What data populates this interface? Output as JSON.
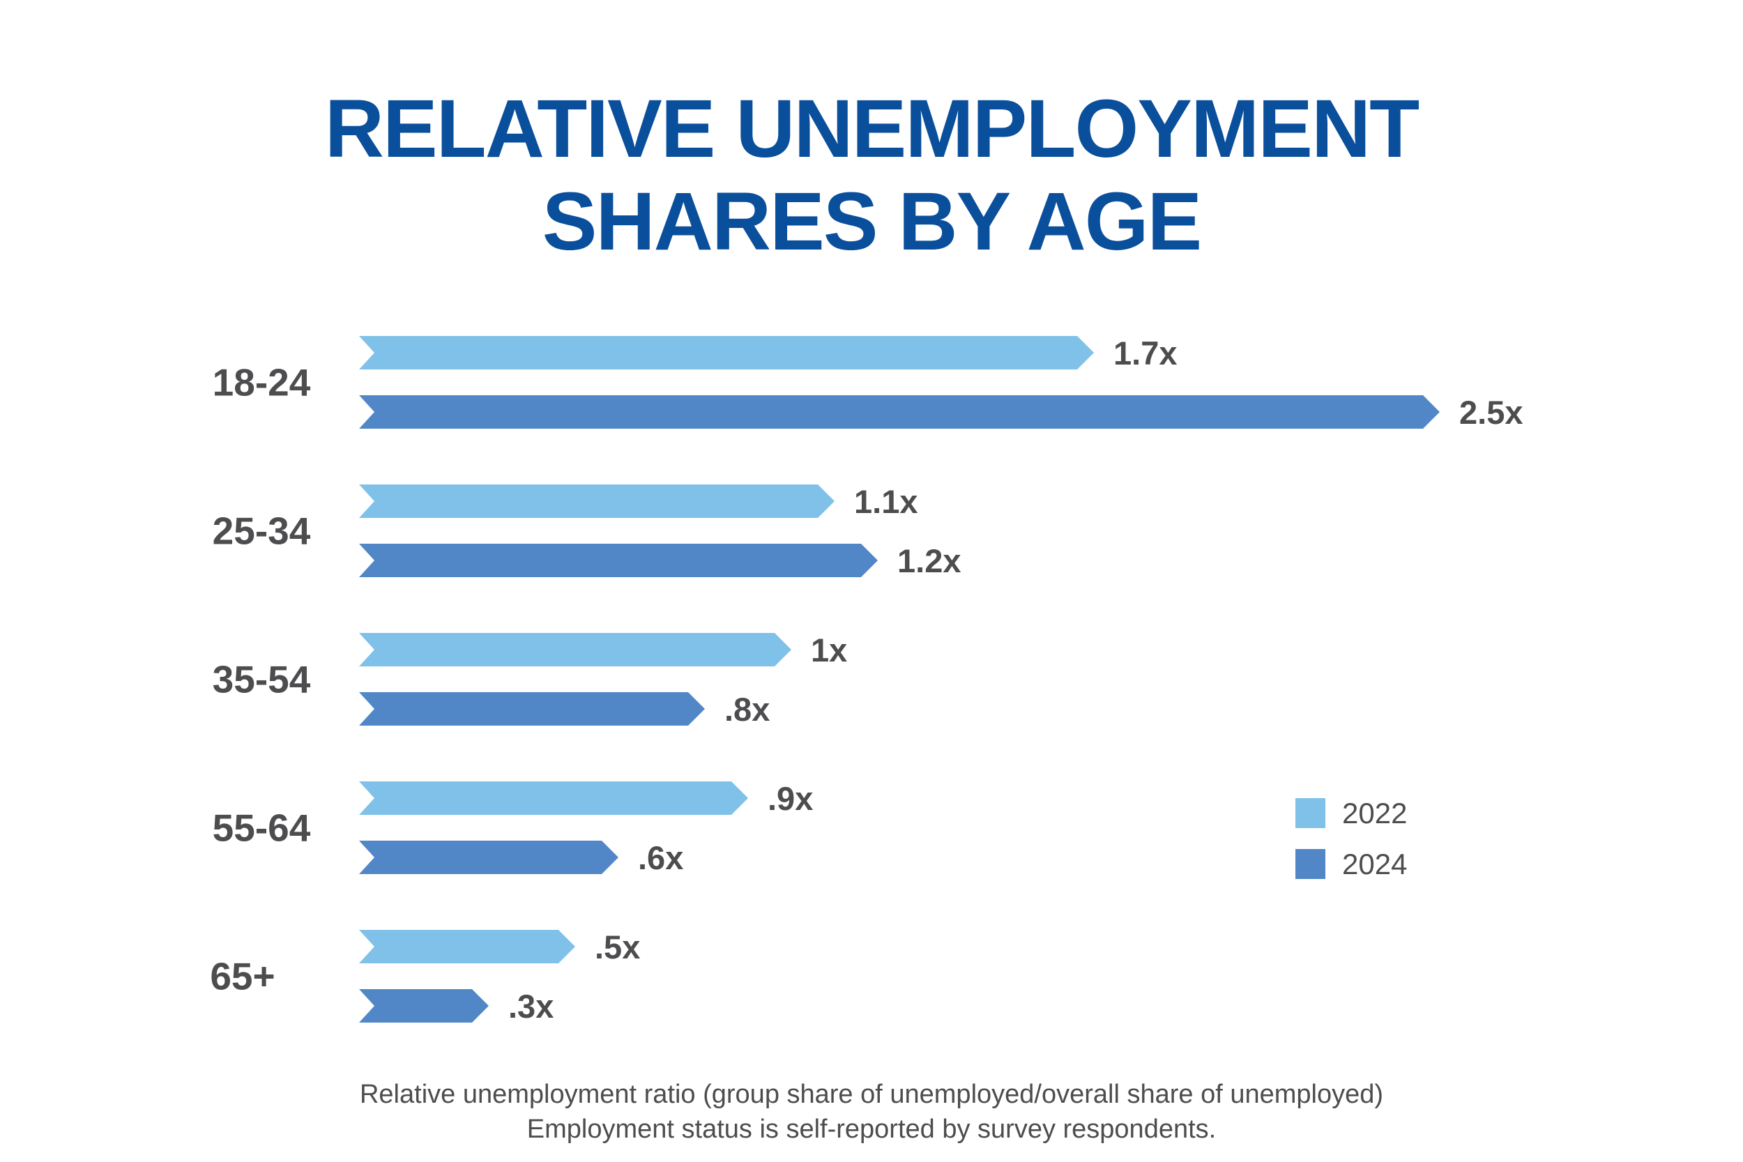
{
  "colors": {
    "title": "#0a4f9c",
    "text": "#4d4d4f",
    "series_2022": "#7fc1e8",
    "series_2024": "#5187c7"
  },
  "chart_data": {
    "type": "bar",
    "orientation": "horizontal",
    "title_lines": [
      "RELATIVE UNEMPLOYMENT",
      "SHARES BY AGE"
    ],
    "categories": [
      "18-24",
      "25-34",
      "35-54",
      "55-64",
      "65+"
    ],
    "series": [
      {
        "name": "2022",
        "values": [
          1.7,
          1.1,
          1.0,
          0.9,
          0.5
        ],
        "labels": [
          "1.7x",
          "1.1x",
          "1x",
          ".9x",
          ".5x"
        ]
      },
      {
        "name": "2024",
        "values": [
          2.5,
          1.2,
          0.8,
          0.6,
          0.3
        ],
        "labels": [
          "2.5x",
          "1.2x",
          ".8x",
          ".6x",
          ".3x"
        ]
      }
    ],
    "legend_position": "right",
    "grid": false,
    "footnotes": [
      "Relative unemployment ratio (group share of unemployed/overall share of unemployed)",
      "Employment status is self-reported by survey respondents."
    ]
  }
}
